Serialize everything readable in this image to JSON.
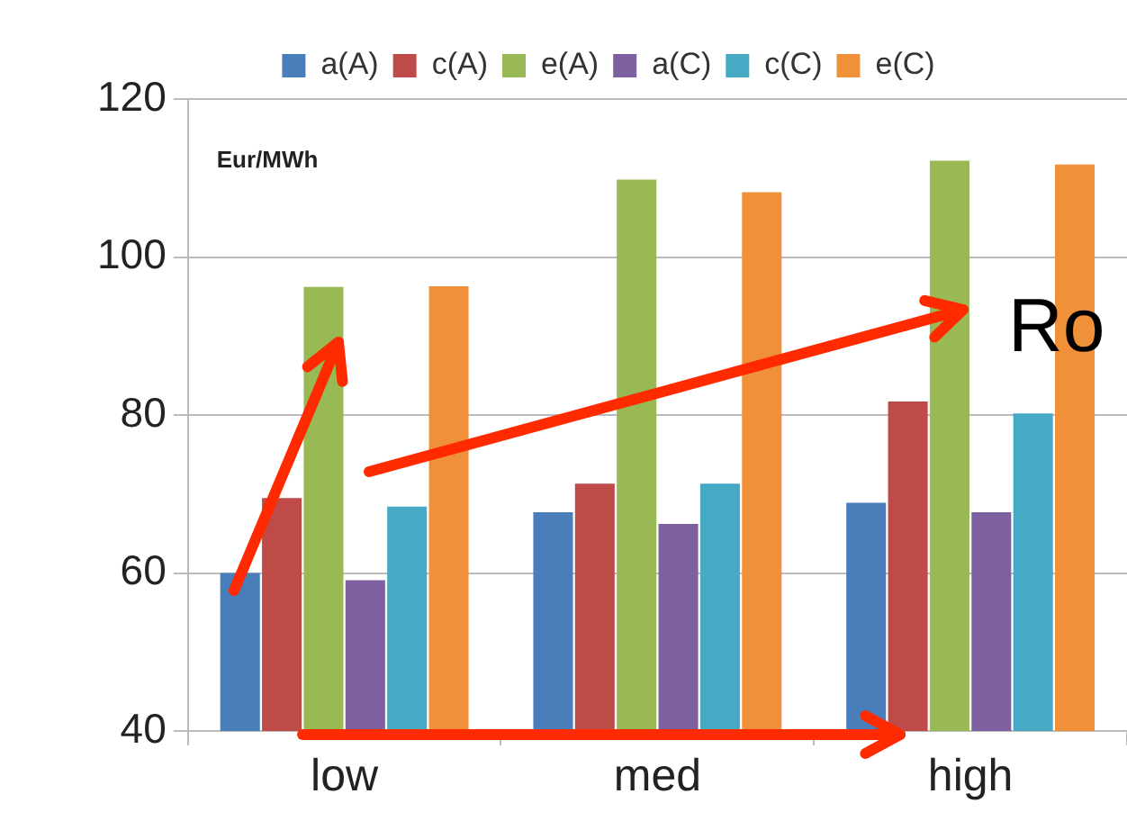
{
  "chart_data": {
    "type": "bar",
    "ylabel": "Eur/MWh",
    "categories": [
      "low",
      "med",
      "high"
    ],
    "series": [
      {
        "name": "a(A)",
        "color": "#4a7ebb",
        "values": [
          60,
          67.7,
          68.9
        ]
      },
      {
        "name": "c(A)",
        "color": "#be4b48",
        "values": [
          69.5,
          71.3,
          81.7
        ]
      },
      {
        "name": "e(A)",
        "color": "#98b954",
        "values": [
          96.2,
          109.8,
          112.2
        ]
      },
      {
        "name": "a(C)",
        "color": "#7d60a0",
        "values": [
          59.1,
          66.2,
          67.7
        ]
      },
      {
        "name": "c(C)",
        "color": "#46aac5",
        "values": [
          68.4,
          71.3,
          80.2
        ]
      },
      {
        "name": "e(C)",
        "color": "#f0913a",
        "values": [
          96.3,
          108.2,
          111.7
        ]
      }
    ],
    "ylim": [
      40,
      120
    ],
    "yticks": [
      40,
      60,
      80,
      100,
      120
    ],
    "grid": "y",
    "legend": "top",
    "annotations": [
      "Ro"
    ]
  }
}
